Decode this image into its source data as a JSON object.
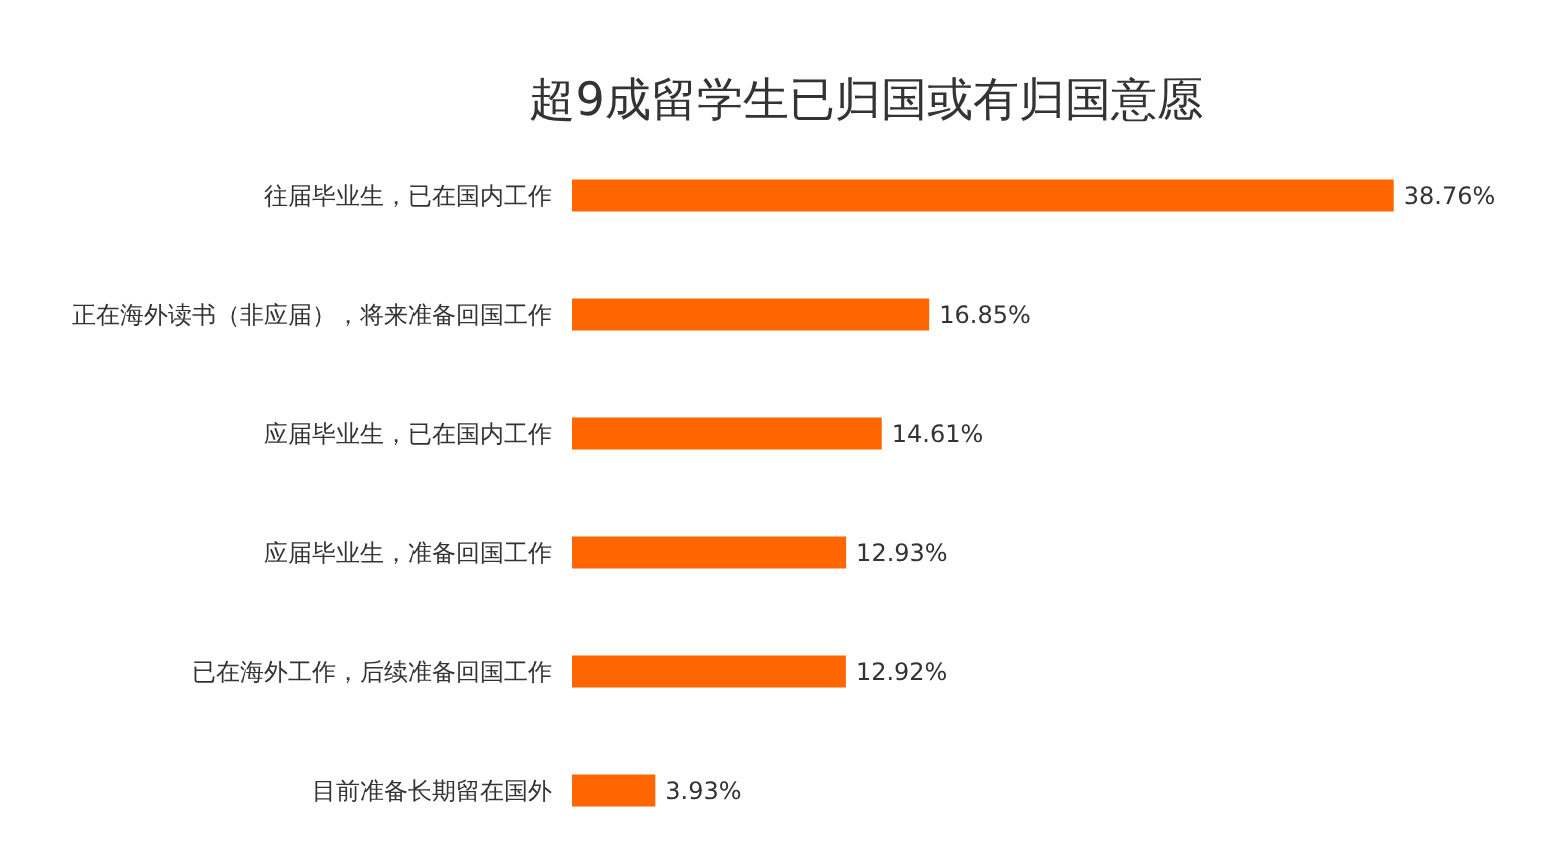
{
  "chart_data": {
    "type": "bar",
    "orientation": "horizontal",
    "title": "超9成留学生已归国或有归国意愿",
    "categories": [
      "往届毕业生，已在国内工作",
      "正在海外读书（非应届），将来准备回国工作",
      "应届毕业生，已在国内工作",
      "应届毕业生，准备回国工作",
      "已在海外工作，后续准备回国工作",
      "目前准备长期留在国外"
    ],
    "values": [
      38.76,
      16.85,
      14.61,
      12.93,
      12.92,
      3.93
    ],
    "value_labels": [
      "38.76%",
      "16.85%",
      "14.61%",
      "12.93%",
      "12.92%",
      "3.93%"
    ],
    "color": "#ff6600",
    "grid": false
  }
}
